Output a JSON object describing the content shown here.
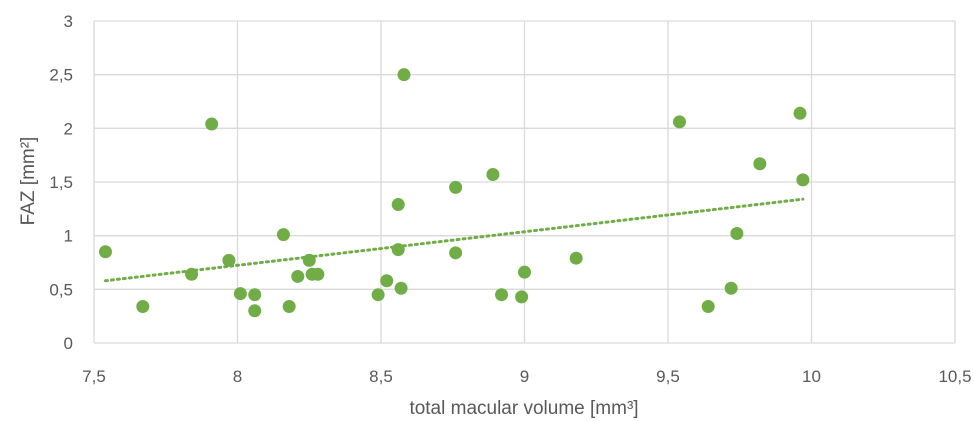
{
  "chart_data": {
    "type": "scatter",
    "xlabel": "total macular volume [mm³]",
    "ylabel": "FAZ [mm²]",
    "xlim": [
      7.5,
      10.5
    ],
    "ylim": [
      0,
      3
    ],
    "x_ticks": [
      "7,5",
      "8",
      "8,5",
      "9",
      "9,5",
      "10",
      "10,5"
    ],
    "y_ticks": [
      "0",
      "0,5",
      "1",
      "1,5",
      "2",
      "2,5",
      "3"
    ],
    "x_tick_values": [
      7.5,
      8,
      8.5,
      9,
      9.5,
      10,
      10.5
    ],
    "y_tick_values": [
      0,
      0.5,
      1,
      1.5,
      2,
      2.5,
      3
    ],
    "grid": true,
    "legend": "none",
    "marker_color": "#70ad47",
    "trendline": {
      "type": "linear",
      "x": [
        7.54,
        9.97
      ],
      "y": [
        0.58,
        1.34
      ]
    },
    "points": [
      {
        "x": 7.54,
        "y": 0.85
      },
      {
        "x": 7.67,
        "y": 0.34
      },
      {
        "x": 7.84,
        "y": 0.64
      },
      {
        "x": 7.91,
        "y": 2.04
      },
      {
        "x": 7.97,
        "y": 0.77
      },
      {
        "x": 8.01,
        "y": 0.46
      },
      {
        "x": 8.06,
        "y": 0.45
      },
      {
        "x": 8.06,
        "y": 0.3
      },
      {
        "x": 8.16,
        "y": 1.01
      },
      {
        "x": 8.18,
        "y": 0.34
      },
      {
        "x": 8.21,
        "y": 0.62
      },
      {
        "x": 8.25,
        "y": 0.77
      },
      {
        "x": 8.26,
        "y": 0.64
      },
      {
        "x": 8.28,
        "y": 0.64
      },
      {
        "x": 8.49,
        "y": 0.45
      },
      {
        "x": 8.52,
        "y": 0.58
      },
      {
        "x": 8.56,
        "y": 1.29
      },
      {
        "x": 8.56,
        "y": 0.87
      },
      {
        "x": 8.57,
        "y": 0.51
      },
      {
        "x": 8.58,
        "y": 2.5
      },
      {
        "x": 8.76,
        "y": 1.45
      },
      {
        "x": 8.76,
        "y": 0.84
      },
      {
        "x": 8.89,
        "y": 1.57
      },
      {
        "x": 8.92,
        "y": 0.45
      },
      {
        "x": 8.99,
        "y": 0.43
      },
      {
        "x": 9.0,
        "y": 0.66
      },
      {
        "x": 9.18,
        "y": 0.79
      },
      {
        "x": 9.54,
        "y": 2.06
      },
      {
        "x": 9.64,
        "y": 0.34
      },
      {
        "x": 9.72,
        "y": 0.51
      },
      {
        "x": 9.74,
        "y": 1.02
      },
      {
        "x": 9.82,
        "y": 1.67
      },
      {
        "x": 9.96,
        "y": 2.14
      },
      {
        "x": 9.97,
        "y": 1.52
      }
    ]
  }
}
